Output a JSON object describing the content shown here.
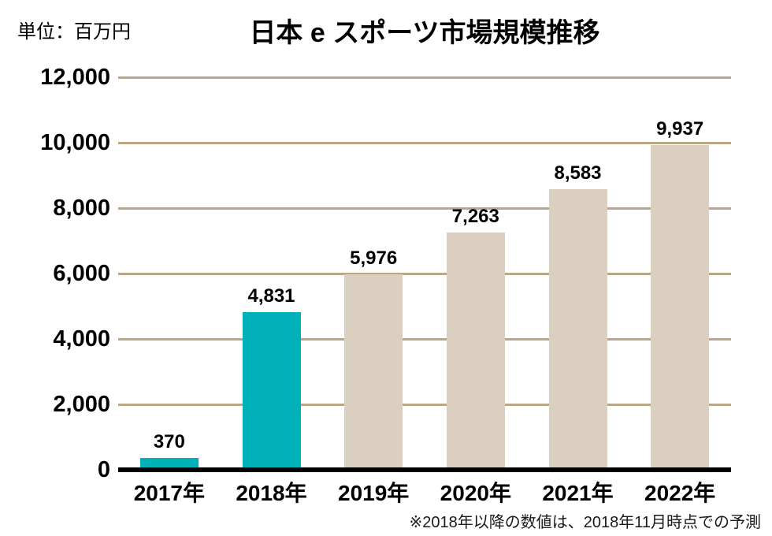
{
  "header": {
    "unit_label": "単位：百万円",
    "title": "日本 e スポーツ市場規模推移"
  },
  "footnote": "※2018年以降の数値は、2018年11月時点での予測",
  "colors": {
    "highlight_bar": "#00b1ba",
    "forecast_bar": "#dbcfbf",
    "gridline": "#b8a687",
    "axis_line": "#000000",
    "text": "#000000"
  },
  "chart_data": {
    "type": "bar",
    "title": "日本 e スポーツ市場規模推移",
    "unit": "百万円",
    "categories": [
      "2017年",
      "2018年",
      "2019年",
      "2020年",
      "2021年",
      "2022年"
    ],
    "values": [
      370,
      4831,
      5976,
      7263,
      8583,
      9937
    ],
    "value_labels": [
      "370",
      "4,831",
      "5,976",
      "7,263",
      "8,583",
      "9,937"
    ],
    "bar_colors": [
      "#00b1ba",
      "#00b1ba",
      "#dbcfbf",
      "#dbcfbf",
      "#dbcfbf",
      "#dbcfbf"
    ],
    "xlabel": "",
    "ylabel": "",
    "ylim": [
      0,
      12000
    ],
    "ytick_interval": 2000,
    "ytick_labels": [
      "0",
      "2,000",
      "4,000",
      "6,000",
      "8,000",
      "10,000",
      "12,000"
    ],
    "grid": "horizontal",
    "legend_position": "none",
    "annotation": "※2018年以降の数値は、2018年11月時点での予測"
  }
}
